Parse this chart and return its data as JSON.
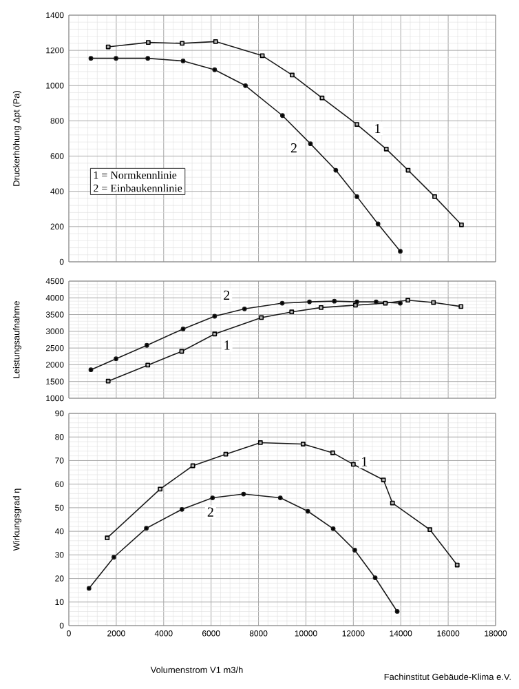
{
  "chart_data": [
    {
      "type": "line",
      "ylabel": "Druckerhöhung Δpt  (Pa)",
      "xlim": [
        0,
        18000
      ],
      "xticks": [
        0,
        2000,
        4000,
        6000,
        8000,
        10000,
        12000,
        14000,
        16000,
        18000
      ],
      "ylim": [
        0,
        1400
      ],
      "yticks": [
        0,
        200,
        400,
        600,
        800,
        1000,
        1200,
        1400
      ],
      "grid": true,
      "tick_labels": "y",
      "series": [
        {
          "name": "1",
          "color": "#1a1a1a",
          "marker": "square",
          "x": [
            1660,
            3350,
            4780,
            6190,
            8160,
            9420,
            10680,
            12150,
            13390,
            14310,
            15430,
            16560
          ],
          "values": [
            1220,
            1245,
            1240,
            1250,
            1170,
            1060,
            930,
            780,
            640,
            520,
            370,
            210
          ]
        },
        {
          "name": "2",
          "color": "#1a1a1a",
          "marker": "circle",
          "x": [
            930,
            1990,
            3330,
            4820,
            6150,
            7450,
            9010,
            10190,
            11260,
            12150,
            13040,
            13980
          ],
          "values": [
            1155,
            1155,
            1155,
            1140,
            1090,
            1000,
            830,
            670,
            520,
            370,
            215,
            60
          ]
        }
      ],
      "annotations": [
        "1 = Normkennlinie",
        "2 = Einbaukennlinie"
      ]
    },
    {
      "type": "line",
      "ylabel": "Leistungsaufnahme",
      "xlim": [
        0,
        18000
      ],
      "xticks": [
        0,
        2000,
        4000,
        6000,
        8000,
        10000,
        12000,
        14000,
        16000,
        18000
      ],
      "ylim": [
        1000,
        4500
      ],
      "yticks": [
        1000,
        1500,
        2000,
        2500,
        3000,
        3500,
        4000,
        4500
      ],
      "grid": true,
      "tick_labels": "y",
      "series": [
        {
          "name": "1",
          "color": "#1a1a1a",
          "marker": "square",
          "x": [
            1660,
            3330,
            4760,
            6150,
            8120,
            9400,
            10640,
            12090,
            13350,
            14300,
            15380,
            16540
          ],
          "values": [
            1510,
            1990,
            2400,
            2920,
            3410,
            3580,
            3710,
            3780,
            3840,
            3930,
            3860,
            3740
          ]
        },
        {
          "name": "2",
          "color": "#1a1a1a",
          "marker": "circle",
          "x": [
            930,
            1990,
            3290,
            4820,
            6150,
            7410,
            9000,
            10150,
            11200,
            12150,
            12960,
            13980
          ],
          "values": [
            1850,
            2180,
            2580,
            3070,
            3450,
            3670,
            3840,
            3880,
            3900,
            3880,
            3880,
            3840
          ]
        }
      ]
    },
    {
      "type": "line",
      "ylabel": "Wirkungsgrad  η",
      "xlabel": "Volumenstrom    V1  m3/h",
      "xlim": [
        0,
        18000
      ],
      "xticks": [
        0,
        2000,
        4000,
        6000,
        8000,
        10000,
        12000,
        14000,
        16000,
        18000
      ],
      "ylim": [
        0,
        90
      ],
      "yticks": [
        0,
        10,
        20,
        30,
        40,
        50,
        60,
        70,
        80,
        90
      ],
      "grid": true,
      "series": [
        {
          "name": "1",
          "color": "#1a1a1a",
          "marker": "square",
          "x": [
            1620,
            3850,
            5230,
            6620,
            8080,
            9880,
            11130,
            12000,
            13270,
            13650,
            15230,
            16380
          ],
          "values": [
            37.2,
            57.9,
            67.8,
            72.7,
            77.6,
            77.0,
            73.3,
            68.4,
            61.8,
            52.0,
            40.7,
            25.7
          ]
        },
        {
          "name": "2",
          "color": "#1a1a1a",
          "marker": "circle",
          "x": [
            850,
            1900,
            3270,
            4770,
            6060,
            7370,
            8920,
            10080,
            11150,
            12060,
            12920,
            13850
          ],
          "values": [
            15.8,
            29.0,
            41.3,
            49.3,
            54.2,
            55.8,
            54.2,
            48.5,
            41.1,
            32.0,
            20.3,
            6.0
          ]
        }
      ],
      "annotations": [
        "Fachinstitut Gebäude-Klima e.V."
      ]
    }
  ]
}
